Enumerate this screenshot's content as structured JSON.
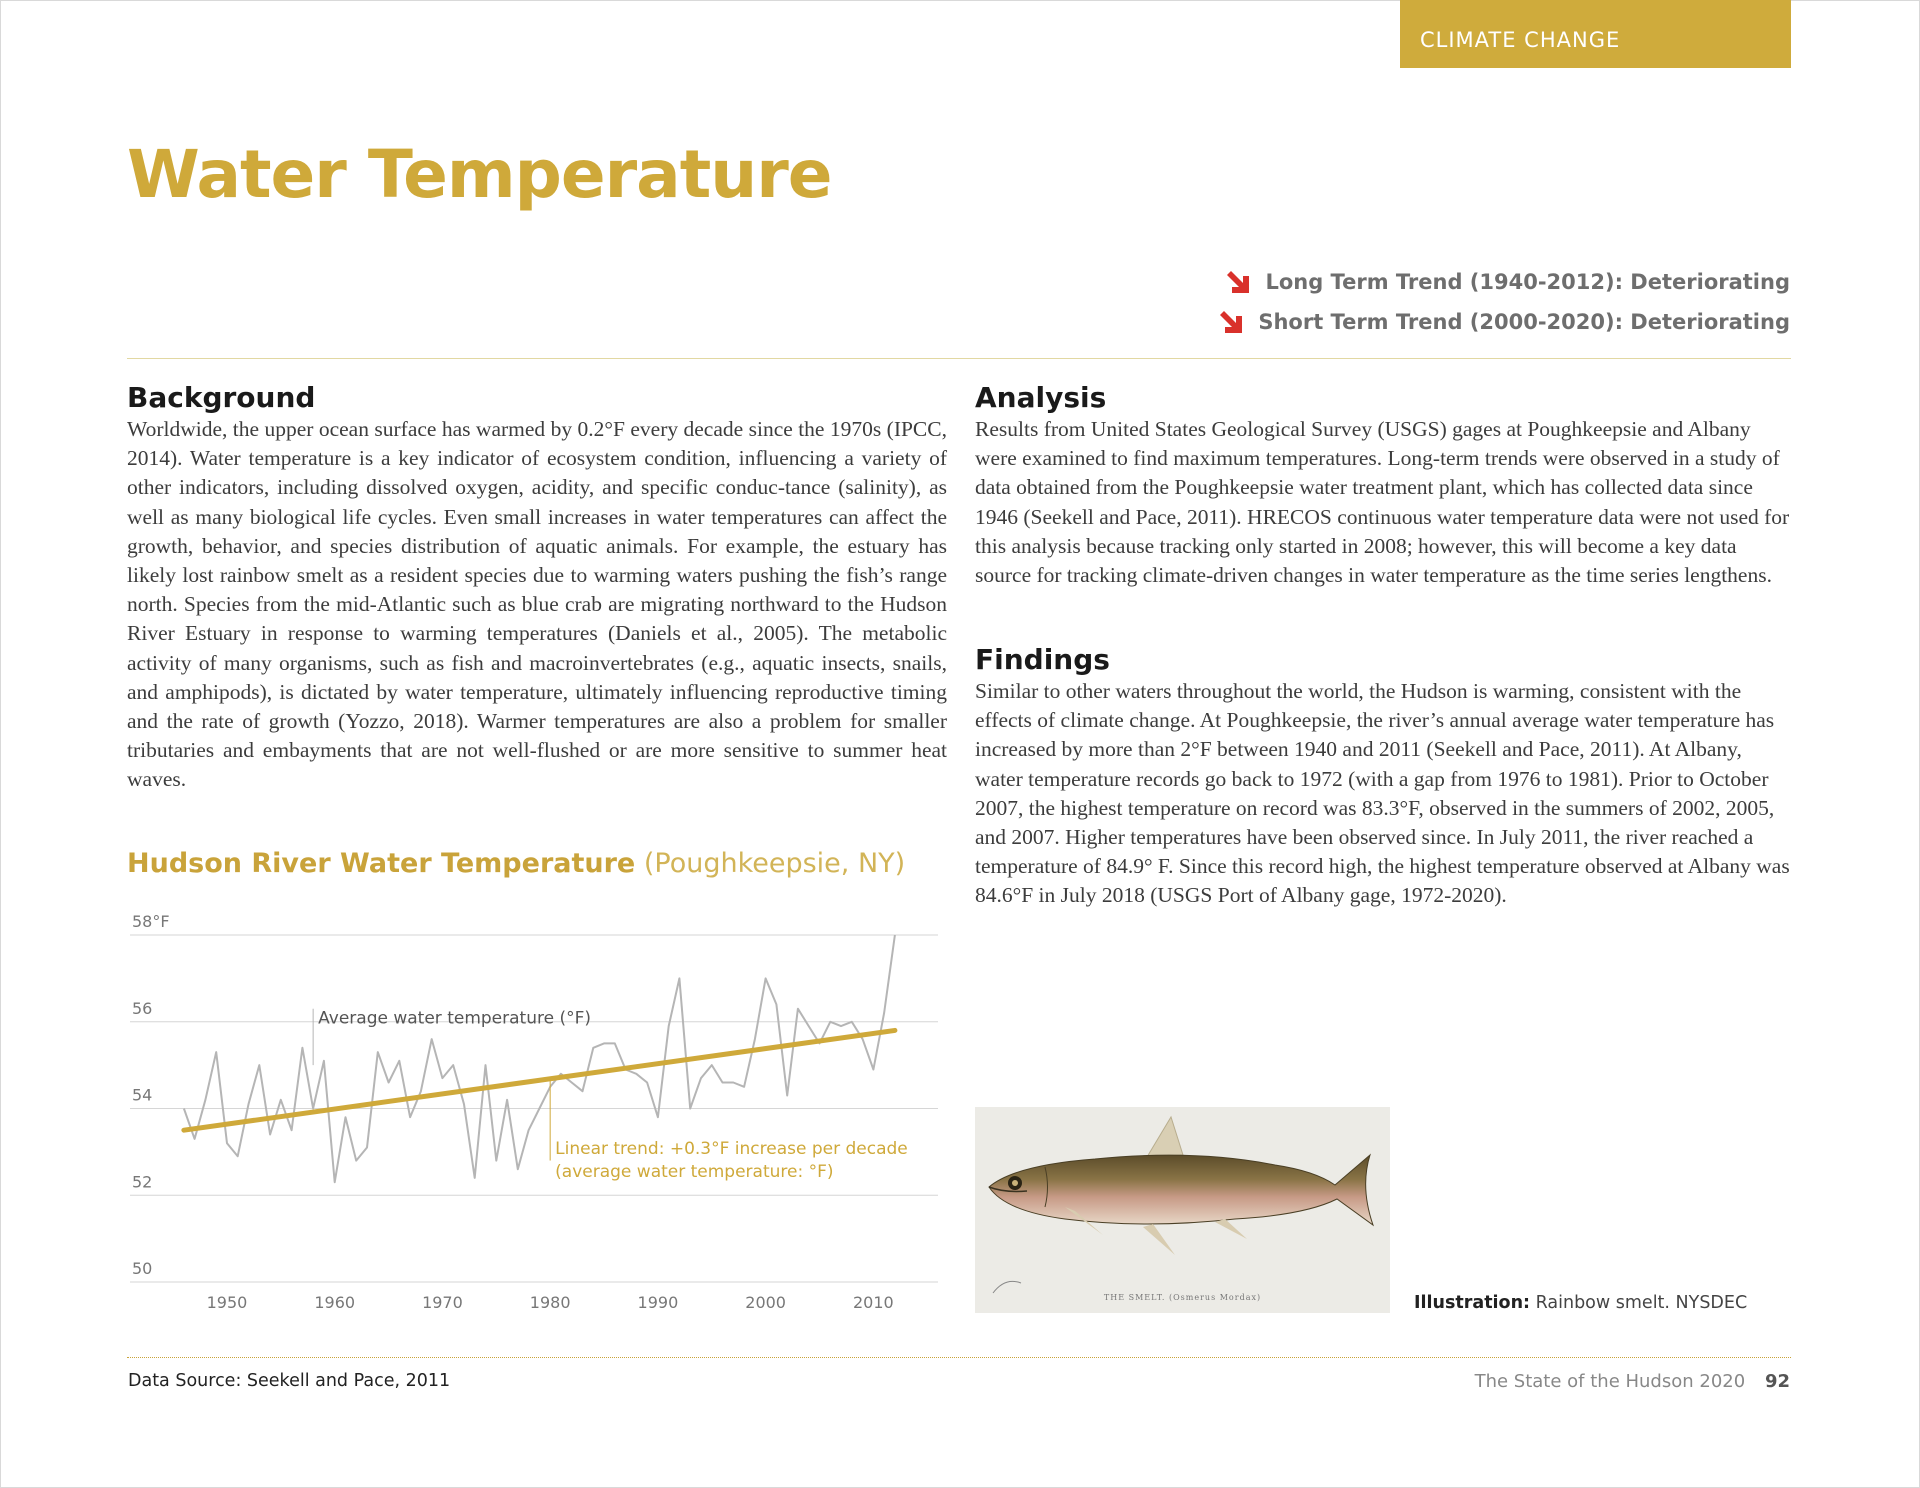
{
  "header": {
    "section_tab": "CLIMATE CHANGE",
    "title": "Water Temperature"
  },
  "trends": [
    {
      "label": "Long Term Trend (1940-2012): Deteriorating",
      "status": "deteriorating",
      "icon": "down-right-arrow-icon",
      "color": "#d9312b"
    },
    {
      "label": "Short Term Trend (2000-2020): Deteriorating",
      "status": "deteriorating",
      "icon": "down-right-arrow-icon",
      "color": "#d9312b"
    }
  ],
  "background": {
    "heading": "Background",
    "text": "Worldwide, the upper ocean surface has warmed by 0.2°F every decade since the 1970s (IPCC, 2014). Water temperature is a key indicator of ecosystem condition, influencing a variety of other indicators, including dissolved oxygen, acidity, and specific conduc-tance (salinity), as well as many biological life cycles. Even small increases in water temperatures can affect the growth, behavior, and species distribution of aquatic animals. For example, the estuary has likely lost rainbow smelt as a resident species due to warming waters pushing the fish’s range north. Species from the mid-Atlantic such as blue crab are migrating northward to the Hudson River Estuary in response to warming temperatures (Daniels et al., 2005). The metabolic activity of many organisms, such as fish and macroinvertebrates (e.g., aquatic insects, snails, and amphipods), is dictated by water temperature, ultimately influencing reproductive timing and the rate of growth (Yozzo, 2018). Warmer temperatures are also a problem for smaller tributaries and embayments that are not well-flushed or are more sensitive to summer heat waves."
  },
  "analysis": {
    "heading": "Analysis",
    "text": "Results from United States Geological Survey (USGS) gages at Poughkeepsie and Albany were examined to find maximum temperatures. Long-term trends were observed in a study of data obtained from the Poughkeepsie water treatment plant, which has collected data since 1946 (Seekell and Pace, 2011). HRECOS continuous water temperature data were not used for this analysis because tracking only started in 2008; however, this will become a key data source for tracking climate-driven changes in water temperature as the time series lengthens."
  },
  "findings": {
    "heading": "Findings",
    "text": "Similar to other waters throughout the world, the Hudson is warming, consistent with the effects of climate change. At Poughkeepsie, the river’s annual average water temperature has increased by more than 2°F between 1940 and 2011 (Seekell and Pace, 2011). At Albany, water temperature records go back to 1972 (with a gap from 1976 to 1981). Prior to October 2007, the highest temperature on record was 83.3°F, observed in the summers of 2002, 2005, and 2007. Higher temperatures have been observed since. In July 2011, the river reached a temperature of 84.9° F. Since this record high, the highest temperature observed at Albany was 84.6°F in July 2018 (USGS Port of Albany gage, 1972-2020)."
  },
  "chart_title": {
    "main": "Hudson River Water Temperature",
    "sub": "(Poughkeepsie, NY)"
  },
  "chart_data": {
    "type": "line",
    "title": "Hudson River Water Temperature (Poughkeepsie, NY)",
    "xlabel": "",
    "ylabel": "",
    "xlim": [
      1941,
      2016
    ],
    "ylim": [
      50,
      58
    ],
    "x_ticks": [
      1950,
      1960,
      1970,
      1980,
      1990,
      2000,
      2010
    ],
    "y_ticks": [
      50,
      52,
      54,
      56,
      58
    ],
    "y_tick_labels": [
      "50",
      "52",
      "54",
      "56",
      "58°F"
    ],
    "grid": "horizontal",
    "colors": {
      "series": "#b5b5b5",
      "trend": "#cfa93a",
      "grid": "#d6d6d6",
      "tick": "#777777"
    },
    "series": [
      {
        "name": "Average water temperature (°F)",
        "x": [
          1946,
          1947,
          1948,
          1949,
          1950,
          1951,
          1952,
          1953,
          1954,
          1955,
          1956,
          1957,
          1958,
          1959,
          1960,
          1961,
          1962,
          1963,
          1964,
          1965,
          1966,
          1967,
          1968,
          1969,
          1970,
          1971,
          1972,
          1973,
          1974,
          1975,
          1976,
          1977,
          1978,
          1979,
          1980,
          1981,
          1982,
          1983,
          1984,
          1985,
          1986,
          1987,
          1988,
          1989,
          1990,
          1991,
          1992,
          1993,
          1994,
          1995,
          1996,
          1997,
          1998,
          1999,
          2000,
          2001,
          2002,
          2003,
          2004,
          2005,
          2006,
          2007,
          2008,
          2009,
          2010,
          2011,
          2012
        ],
        "y": [
          54.0,
          53.3,
          54.2,
          55.3,
          53.2,
          52.9,
          54.1,
          55.0,
          53.4,
          54.2,
          53.5,
          55.4,
          54.0,
          55.1,
          52.3,
          53.8,
          52.8,
          53.1,
          55.3,
          54.6,
          55.1,
          53.8,
          54.4,
          55.6,
          54.7,
          55.0,
          54.1,
          52.4,
          55.0,
          52.8,
          54.2,
          52.6,
          53.5,
          54.0,
          54.5,
          54.8,
          54.6,
          54.4,
          55.4,
          55.5,
          55.5,
          54.9,
          54.8,
          54.6,
          53.8,
          55.9,
          57.0,
          54.0,
          54.7,
          55.0,
          54.6,
          54.6,
          54.5,
          55.6,
          57.0,
          56.4,
          54.3,
          56.3,
          55.9,
          55.5,
          56.0,
          55.9,
          56.0,
          55.6,
          54.9,
          56.2,
          58.0
        ],
        "label": "Average water temperature (°F)"
      },
      {
        "name": "Linear trend: +0.3°F increase per decade (average water temperature: °F)",
        "x": [
          1946,
          2012
        ],
        "y": [
          53.5,
          55.8
        ],
        "label_line1": "Linear trend: +0.3°F increase per decade",
        "label_line2": "(average water temperature: °F)"
      }
    ]
  },
  "illustration": {
    "plate_label": "THE SMELT. (Osmerus Mordax)",
    "caption_bold": "Illustration:",
    "caption_text": "Rainbow smelt. NYSDEC"
  },
  "footer": {
    "source": "Data Source: Seekell and Pace, 2011",
    "publication": "The State of the Hudson 2020",
    "page_number": "92"
  }
}
